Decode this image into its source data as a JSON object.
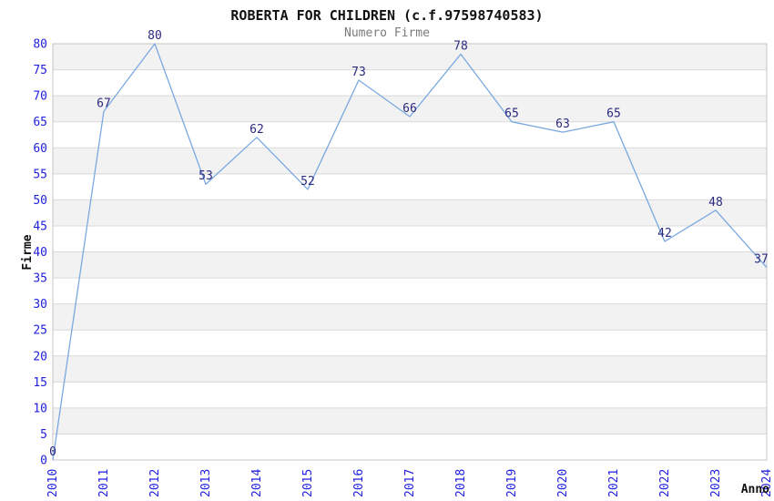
{
  "chart_data": {
    "type": "line",
    "title": "ROBERTA FOR CHILDREN (c.f.97598740583)",
    "subtitle": "Numero Firme",
    "xlabel": "Anno",
    "ylabel": "Firme",
    "categories": [
      "2010",
      "2011",
      "2012",
      "2013",
      "2014",
      "2015",
      "2016",
      "2017",
      "2018",
      "2019",
      "2020",
      "2021",
      "2022",
      "2023",
      "2024"
    ],
    "series": [
      {
        "name": "Numero Firme",
        "values": [
          0,
          67,
          80,
          53,
          62,
          52,
          73,
          66,
          78,
          65,
          63,
          65,
          42,
          48,
          37
        ]
      }
    ],
    "ylim": [
      0,
      80
    ],
    "ytick_step": 5,
    "grid": true,
    "stripes": true,
    "legend_position": "none",
    "data_labels_visible": true,
    "colors": {
      "line": "#7aa9e0",
      "tick_label": "#2121de",
      "data_label": "#2a2a80",
      "stripe": "#f2f2f2",
      "gridline": "#d9d9d9",
      "border": "#c6c6c6",
      "title": "#111111",
      "subtitle": "#7a7a7a",
      "axis_title": "#111111",
      "background": "#ffffff"
    }
  }
}
